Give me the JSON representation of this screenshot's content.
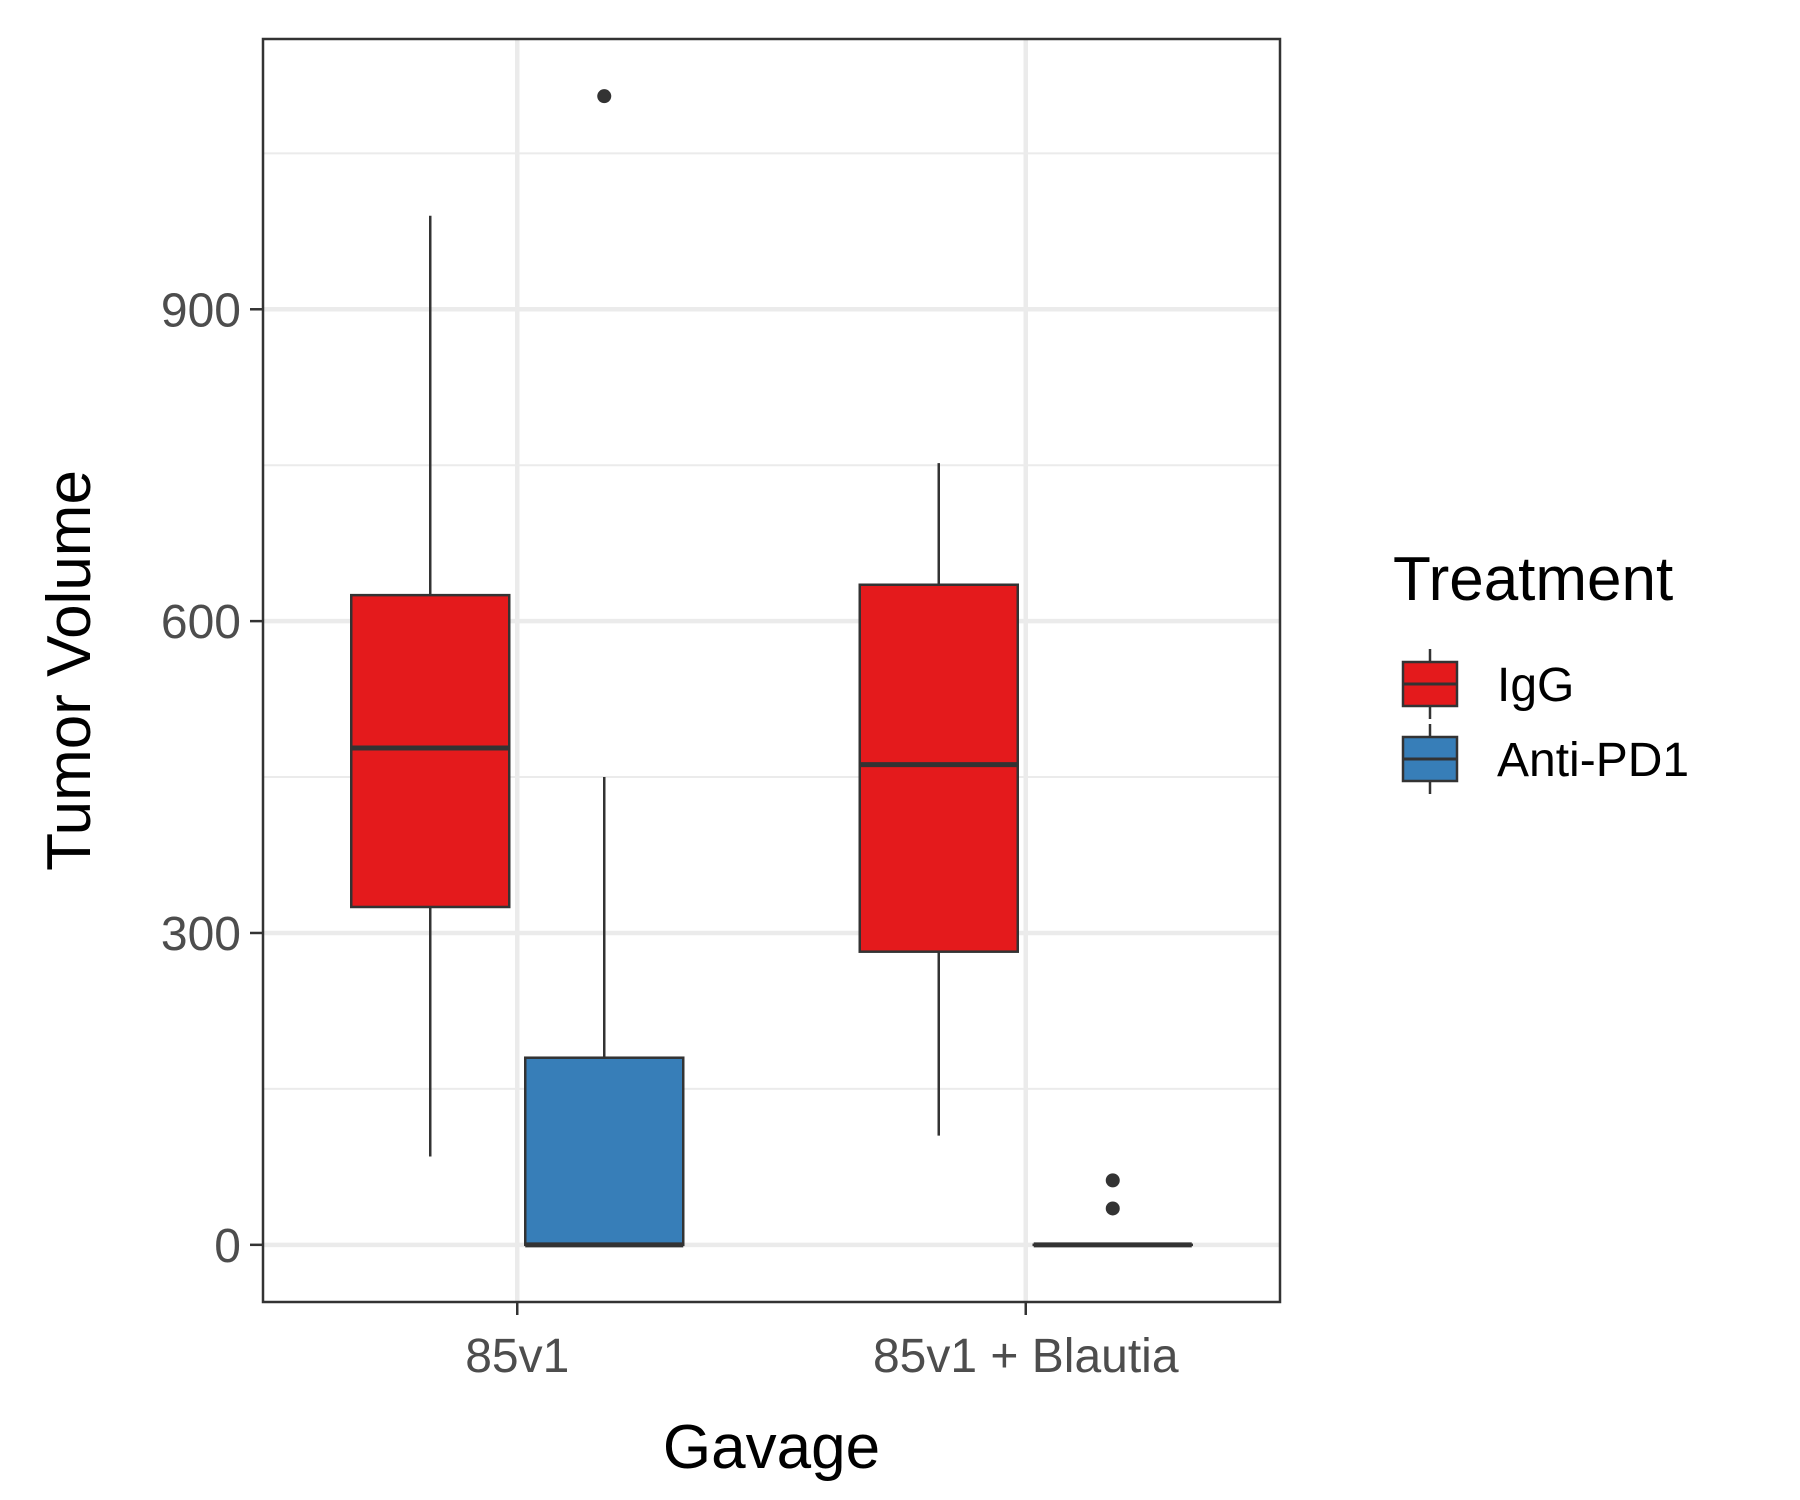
{
  "chart_data": {
    "type": "box",
    "xlabel": "Gavage",
    "ylabel": "Tumor Volume",
    "categories": [
      "85v1",
      "85v1 + Blautia"
    ],
    "yticks": [
      0,
      300,
      600,
      900
    ],
    "ylim": [
      -55,
      1160
    ],
    "grid": true,
    "legend": {
      "title": "Treatment",
      "placement": "right",
      "entries": [
        "IgG",
        "Anti-PD1"
      ]
    },
    "series": [
      {
        "name": "IgG",
        "color": "#e41a1c",
        "boxes": [
          {
            "category": "85v1",
            "whisker_low": 85,
            "q1": 325,
            "median": 478,
            "q3": 625,
            "whisker_high": 990,
            "outliers": []
          },
          {
            "category": "85v1 + Blautia",
            "whisker_low": 105,
            "q1": 282,
            "median": 462,
            "q3": 635,
            "whisker_high": 752,
            "outliers": []
          }
        ]
      },
      {
        "name": "Anti-PD1",
        "color": "#377eb8",
        "boxes": [
          {
            "category": "85v1",
            "whisker_low": 0,
            "q1": 0,
            "median": 0,
            "q3": 180,
            "whisker_high": 450,
            "outliers": [
              1105
            ]
          },
          {
            "category": "85v1 + Blautia",
            "whisker_low": 0,
            "q1": 0,
            "median": 0,
            "q3": 0,
            "whisker_high": 0,
            "outliers": [
              35,
              62
            ]
          }
        ]
      }
    ]
  }
}
